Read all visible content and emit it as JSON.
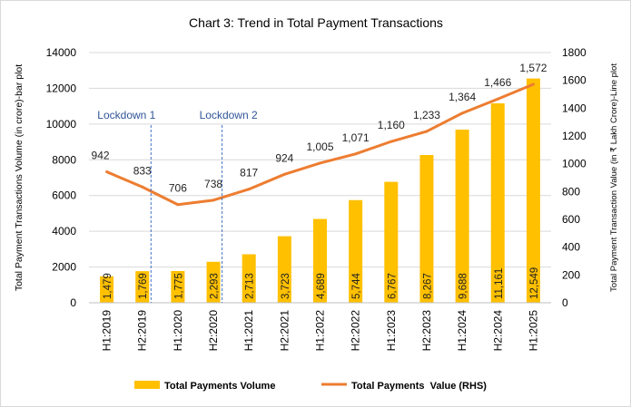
{
  "chart_data": {
    "type": "bar+line",
    "title": "Chart 3: Trend in Total Payment Transactions",
    "categories": [
      "H1:2019",
      "H2:2019",
      "H1:2020",
      "H2:2020",
      "H1:2021",
      "H2:2021",
      "H1:2022",
      "H2:2022",
      "H1:2023",
      "H2:2023",
      "H1:2024",
      "H2:2024",
      "H1:2025"
    ],
    "series": [
      {
        "name": "Total Payments Volume",
        "type": "bar",
        "axis": "left",
        "color": "#FFC000",
        "values": [
          1479,
          1769,
          1775,
          2293,
          2713,
          3723,
          4689,
          5744,
          6767,
          8267,
          9688,
          11161,
          12549
        ],
        "labels": [
          "1,479",
          "1,769",
          "1,775",
          "2,293",
          "2,713",
          "3,723",
          "4,689",
          "5,744",
          "6,767",
          "8,267",
          "9,688",
          "11,161",
          "12,549"
        ]
      },
      {
        "name": "Total Payments  Value (RHS)",
        "type": "line",
        "axis": "right",
        "color": "#ED7D31",
        "values": [
          942,
          833,
          706,
          738,
          817,
          924,
          1005,
          1071,
          1160,
          1233,
          1364,
          1466,
          1572
        ],
        "labels": [
          "942",
          "833",
          "706",
          "738",
          "817",
          "924",
          "1,005",
          "1,071",
          "1,160",
          "1,233",
          "1,364",
          "1,466",
          "1,572"
        ]
      }
    ],
    "ylabel": "Total Payment Transactions Volume (in crore)-bar plot",
    "y2label": "Total Payment Transaction  Value (in ₹ Lakh Crore)-Line plot",
    "ylim": [
      0,
      14000
    ],
    "yticks": [
      "0",
      "2000",
      "4000",
      "6000",
      "8000",
      "10000",
      "12000",
      "14000"
    ],
    "y2lim": [
      0,
      1800
    ],
    "y2ticks": [
      "0",
      "200",
      "400",
      "600",
      "800",
      "1000",
      "1200",
      "1400",
      "1600",
      "1800"
    ],
    "grid": true,
    "legend": "bottom",
    "annotations": [
      {
        "text": "Lockdown 1",
        "between": [
          "H2:2019",
          "H1:2020"
        ]
      },
      {
        "text": "Lockdown 2",
        "between": [
          "H2:2020",
          "H1:2021"
        ]
      }
    ]
  }
}
